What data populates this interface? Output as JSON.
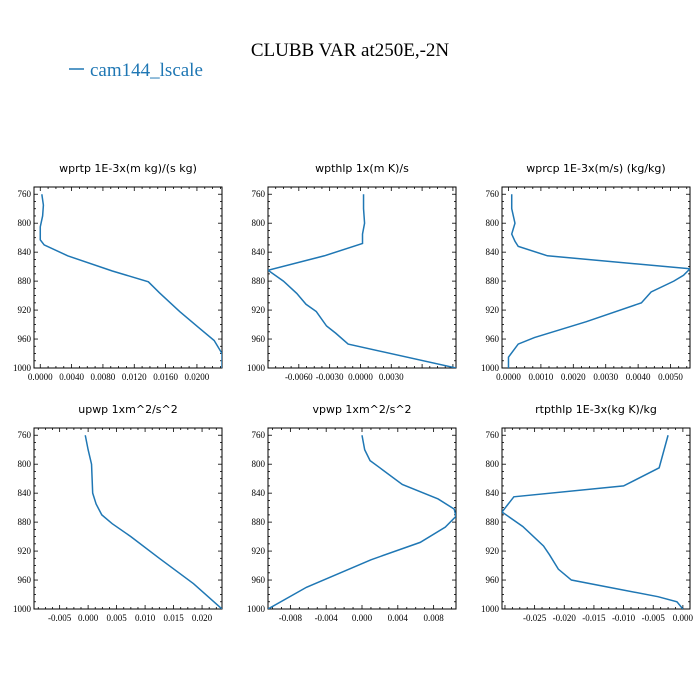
{
  "title": "CLUBB VAR at250E,-2N",
  "legend": {
    "label": "cam144_lscale",
    "color": "#1f77b4"
  },
  "chart_data": [
    {
      "type": "line",
      "title": "wprtp  1E-3x(m kg)/(s kg)",
      "xlim": [
        -0.0008,
        0.0232
      ],
      "ylim": [
        1000,
        750
      ],
      "xticks": [
        0.0,
        0.004,
        0.008,
        0.012,
        0.016,
        0.02
      ],
      "xticklabels": [
        "0.0000",
        "0.0040",
        "0.0080",
        "0.0120",
        "0.0160",
        "0.0200"
      ],
      "yticks": [
        760,
        800,
        840,
        880,
        920,
        960,
        1000
      ],
      "series": [
        {
          "name": "cam144_lscale",
          "color": "#1f77b4",
          "x": [
            0.0002,
            0.0004,
            0.0003,
            0.0,
            0.0,
            0.0005,
            0.0035,
            0.0092,
            0.0138,
            0.0152,
            0.0178,
            0.0202,
            0.0222,
            0.0232,
            0.0232
          ],
          "y": [
            760,
            775,
            790,
            805,
            823,
            830,
            845,
            866,
            881,
            896,
            922,
            944,
            962,
            980,
            1000
          ]
        }
      ]
    },
    {
      "type": "line",
      "title": "wpthlp  1x(m K)/s",
      "xlim": [
        -0.009,
        0.0093
      ],
      "ylim": [
        1000,
        750
      ],
      "xticks": [
        -0.006,
        -0.003,
        0.0,
        0.003
      ],
      "xticklabels": [
        "-0.0060",
        "-0.0030",
        "0.0000",
        "0.0030"
      ],
      "yticks": [
        760,
        800,
        840,
        880,
        920,
        960,
        1000
      ],
      "series": [
        {
          "name": "cam144_lscale",
          "color": "#1f77b4",
          "x": [
            0.0003,
            0.0003,
            0.0004,
            0.0002,
            0.0002,
            -0.0035,
            -0.009,
            -0.0075,
            -0.0062,
            -0.0053,
            -0.0043,
            -0.0033,
            -0.0024,
            -0.0012,
            0.0093
          ],
          "y": [
            760,
            780,
            800,
            815,
            828,
            845,
            865,
            880,
            897,
            912,
            922,
            942,
            952,
            967,
            1000
          ]
        }
      ]
    },
    {
      "type": "line",
      "title": "wprcp  1E-3x(m/s) (kg/kg)",
      "xlim": [
        -0.0002,
        0.0056
      ],
      "ylim": [
        1000,
        750
      ],
      "xticks": [
        0.0,
        0.001,
        0.002,
        0.003,
        0.004,
        0.005
      ],
      "xticklabels": [
        "0.0000",
        "0.0010",
        "0.0020",
        "0.0030",
        "0.0040",
        "0.0050"
      ],
      "yticks": [
        760,
        800,
        840,
        880,
        920,
        960,
        1000
      ],
      "series": [
        {
          "name": "cam144_lscale",
          "color": "#1f77b4",
          "x": [
            0.0001,
            0.0001,
            0.0002,
            0.0001,
            0.0002,
            0.0003,
            0.0012,
            0.0056,
            0.0054,
            0.0051,
            0.0044,
            0.0041,
            0.0024,
            0.0008,
            0.0003,
            0.0,
            0.0
          ],
          "y": [
            760,
            780,
            800,
            815,
            825,
            832,
            845,
            863,
            872,
            880,
            895,
            910,
            936,
            958,
            967,
            985,
            1000
          ]
        }
      ]
    },
    {
      "type": "line",
      "title": "upwp  1xm^2/s^2",
      "xlim": [
        -0.0095,
        0.0235
      ],
      "ylim": [
        1000,
        750
      ],
      "xticks": [
        -0.005,
        0.0,
        0.005,
        0.01,
        0.015,
        0.02
      ],
      "xticklabels": [
        "-0.005",
        "0.000",
        "0.005",
        "0.010",
        "0.015",
        "0.020"
      ],
      "yticks": [
        760,
        800,
        840,
        880,
        920,
        960,
        1000
      ],
      "series": [
        {
          "name": "cam144_lscale",
          "color": "#1f77b4",
          "x": [
            -0.0005,
            0.0,
            0.0006,
            0.0007,
            0.0008,
            0.0014,
            0.0024,
            0.0042,
            0.0075,
            0.0125,
            0.0185,
            0.0235
          ],
          "y": [
            760,
            780,
            800,
            820,
            840,
            855,
            870,
            882,
            900,
            930,
            965,
            1000
          ]
        }
      ]
    },
    {
      "type": "line",
      "title": "vpwp  1xm^2/s^2",
      "xlim": [
        -0.0105,
        0.0105
      ],
      "ylim": [
        1000,
        750
      ],
      "xticks": [
        -0.008,
        -0.004,
        0.0,
        0.004,
        0.008
      ],
      "xticklabels": [
        "-0.008",
        "-0.004",
        "0.000",
        "0.004",
        "0.008"
      ],
      "yticks": [
        760,
        800,
        840,
        880,
        920,
        960,
        1000
      ],
      "series": [
        {
          "name": "cam144_lscale",
          "color": "#1f77b4",
          "x": [
            0.0,
            0.0003,
            0.0009,
            0.002,
            0.0045,
            0.0085,
            0.0103,
            0.0105,
            0.0093,
            0.0065,
            0.001,
            -0.0062,
            -0.0105
          ],
          "y": [
            760,
            780,
            795,
            805,
            828,
            848,
            862,
            872,
            887,
            908,
            932,
            970,
            1000
          ]
        }
      ]
    },
    {
      "type": "line",
      "title": "rtpthlp  1E-3x(kg K)/kg",
      "xlim": [
        -0.0305,
        0.0012
      ],
      "ylim": [
        1000,
        750
      ],
      "xticks": [
        -0.025,
        -0.02,
        -0.015,
        -0.01,
        -0.005,
        0.0
      ],
      "xticklabels": [
        "-0.025",
        "-0.020",
        "-0.015",
        "-0.010",
        "-0.005",
        "0.000"
      ],
      "yticks": [
        760,
        800,
        840,
        880,
        920,
        960,
        1000
      ],
      "series": [
        {
          "name": "cam144_lscale",
          "color": "#1f77b4",
          "x": [
            -0.0025,
            -0.004,
            -0.01,
            -0.0285,
            -0.0305,
            -0.027,
            -0.0235,
            -0.0225,
            -0.021,
            -0.0188,
            -0.0125,
            -0.0042,
            -0.001,
            0.0
          ],
          "y": [
            760,
            805,
            830,
            845,
            866,
            886,
            913,
            925,
            945,
            960,
            970,
            983,
            990,
            1000
          ]
        }
      ]
    }
  ]
}
